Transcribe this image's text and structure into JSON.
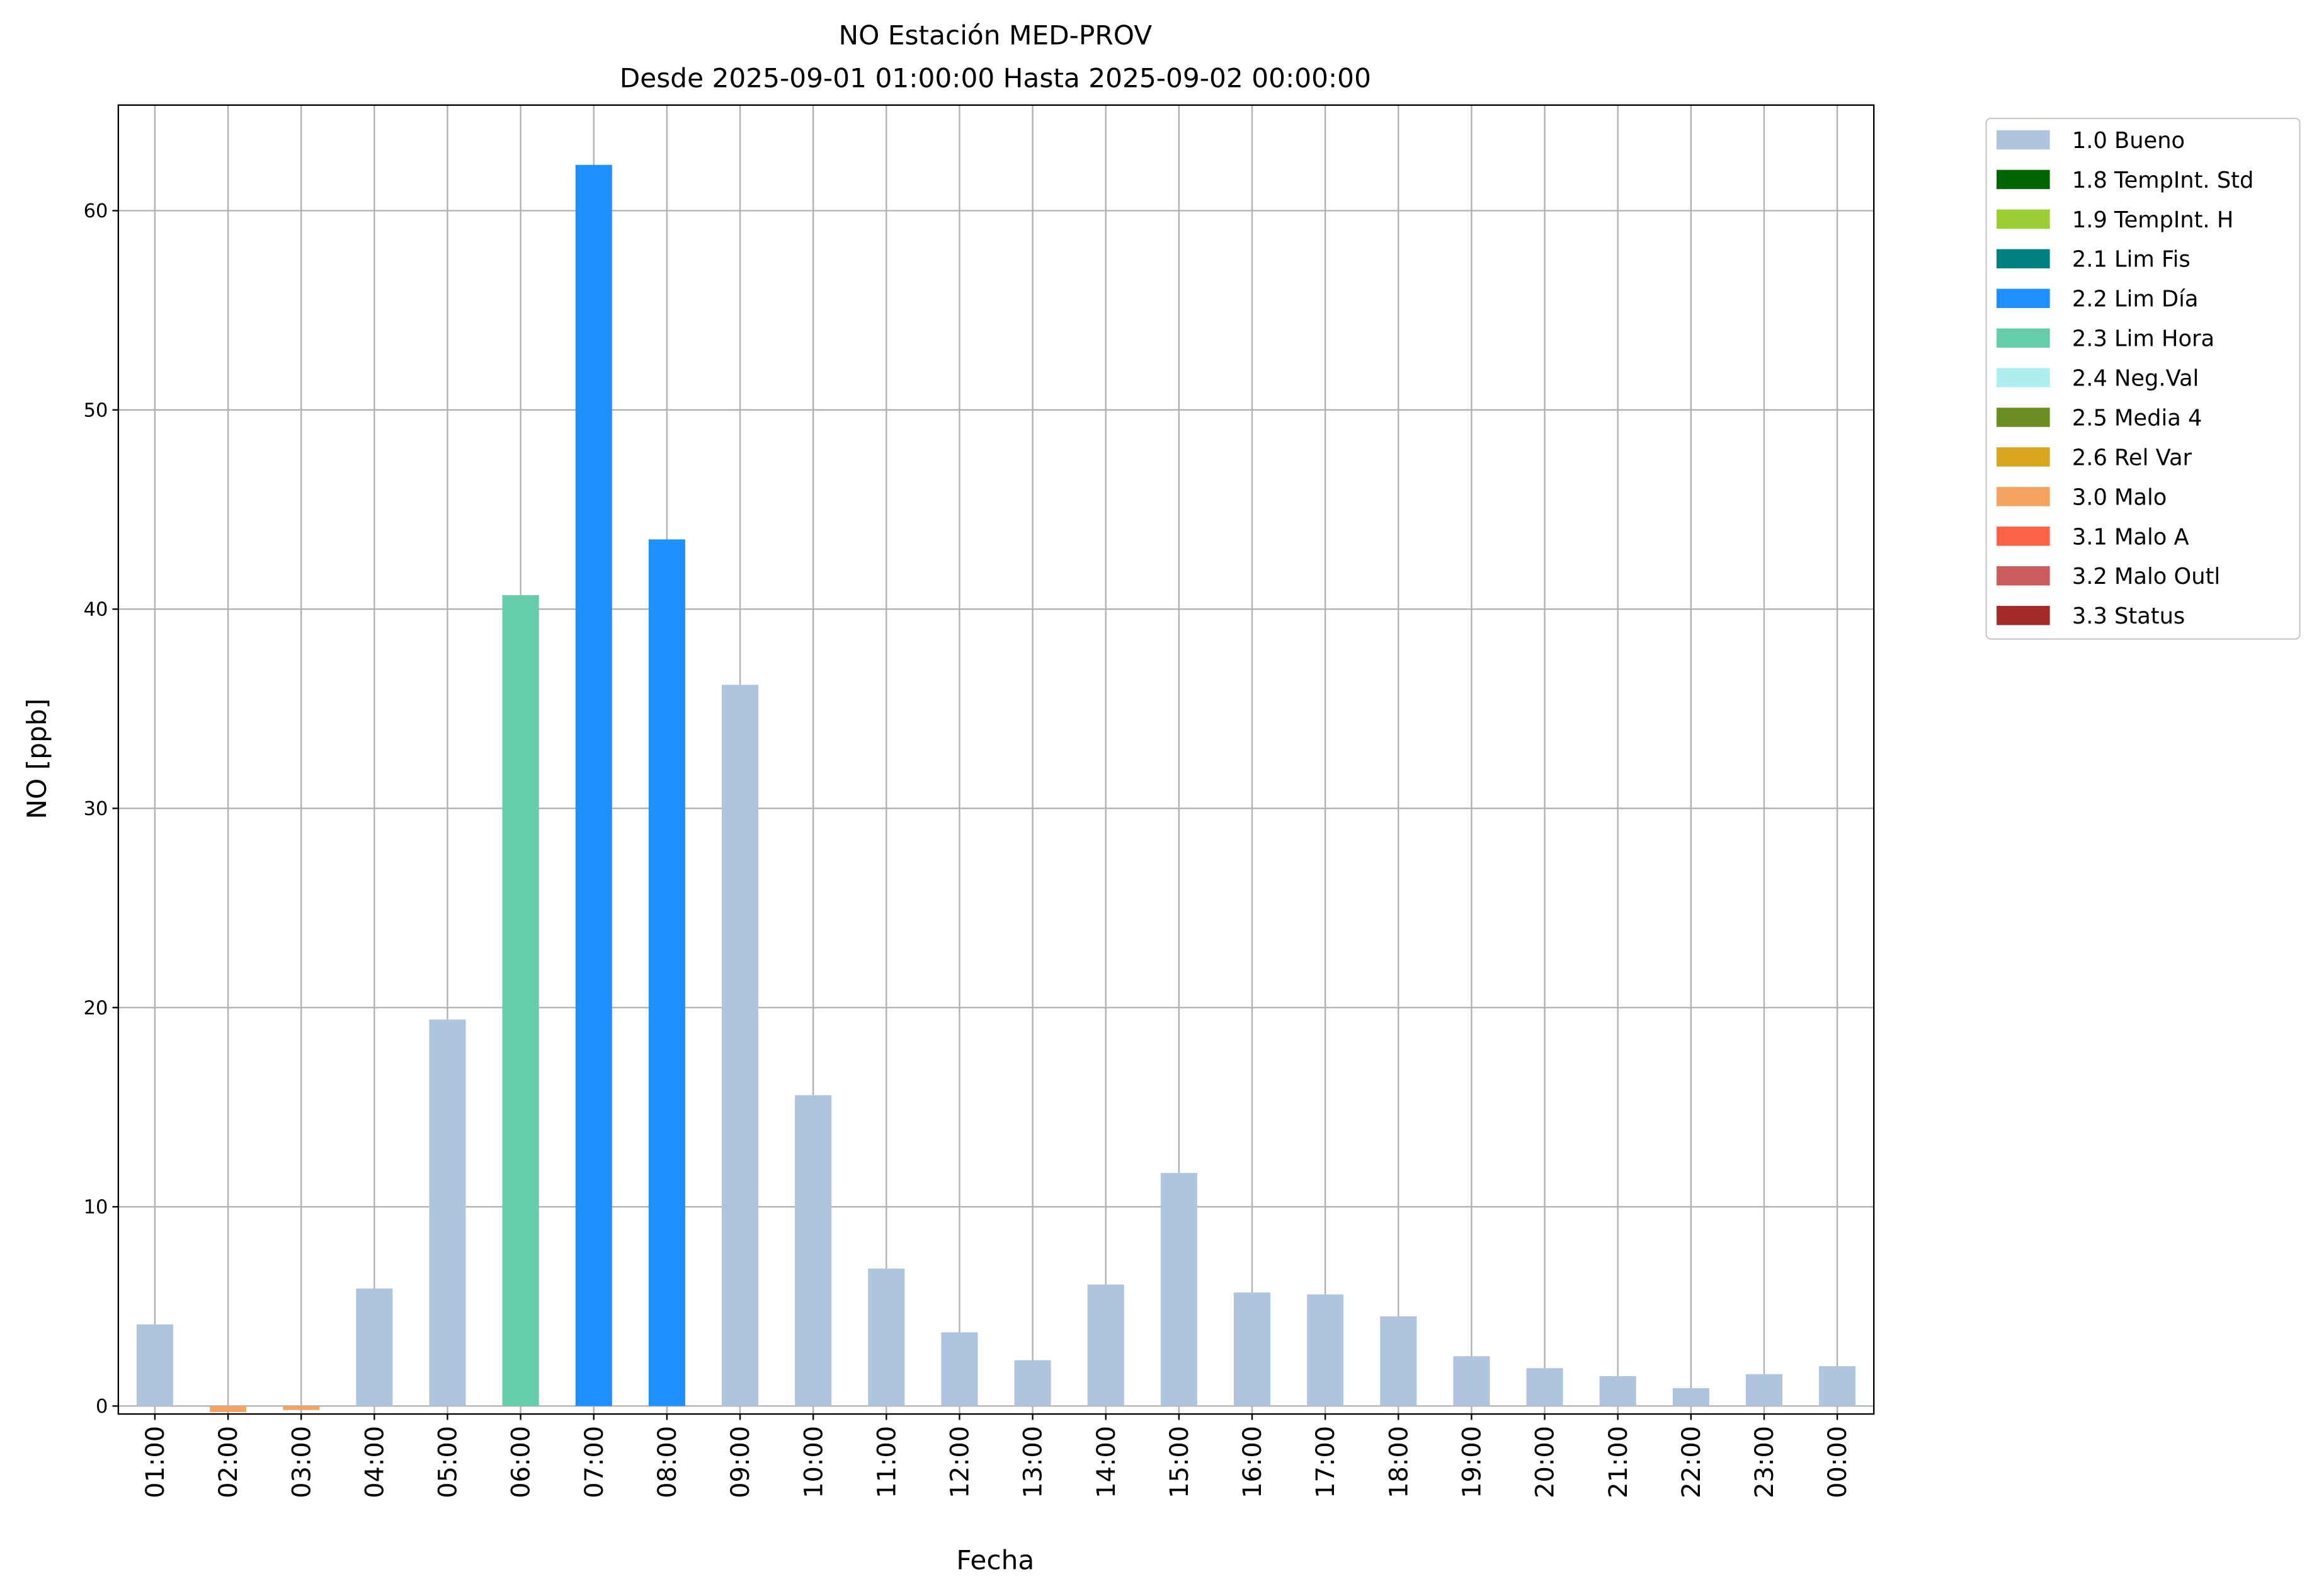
{
  "chart_data": {
    "type": "bar",
    "stacked": true,
    "title": "NO Estación MED-PROV",
    "subtitle": "Desde 2025-09-01 01:00:00 Hasta 2025-09-02 00:00:00",
    "x_label": "Fecha",
    "y_label": "NO [ppb]",
    "categories": [
      "01:00",
      "02:00",
      "03:00",
      "04:00",
      "05:00",
      "06:00",
      "07:00",
      "08:00",
      "09:00",
      "10:00",
      "11:00",
      "12:00",
      "13:00",
      "14:00",
      "15:00",
      "16:00",
      "17:00",
      "18:00",
      "19:00",
      "20:00",
      "21:00",
      "22:00",
      "23:00",
      "00:00"
    ],
    "series": [
      {
        "name": "1.0 Bueno",
        "color": "#b0c4de",
        "values": [
          4.1,
          null,
          null,
          5.9,
          19.4,
          null,
          null,
          null,
          36.2,
          15.6,
          6.9,
          3.7,
          2.3,
          6.1,
          11.7,
          5.7,
          5.6,
          4.5,
          2.5,
          1.9,
          1.5,
          0.9,
          1.6,
          2.0
        ]
      },
      {
        "name": "1.8 TempInt. Std",
        "color": "#006400",
        "values": [
          null,
          null,
          null,
          null,
          null,
          null,
          null,
          null,
          null,
          null,
          null,
          null,
          null,
          null,
          null,
          null,
          null,
          null,
          null,
          null,
          null,
          null,
          null,
          null
        ]
      },
      {
        "name": "1.9 TempInt. H",
        "color": "#9acd32",
        "values": [
          null,
          null,
          null,
          null,
          null,
          null,
          null,
          null,
          null,
          null,
          null,
          null,
          null,
          null,
          null,
          null,
          null,
          null,
          null,
          null,
          null,
          null,
          null,
          null
        ]
      },
      {
        "name": "2.1 Lim Fis",
        "color": "#008080",
        "values": [
          null,
          null,
          null,
          null,
          null,
          null,
          null,
          null,
          null,
          null,
          null,
          null,
          null,
          null,
          null,
          null,
          null,
          null,
          null,
          null,
          null,
          null,
          null,
          null
        ]
      },
      {
        "name": "2.2 Lim Día",
        "color": "#1e90ff",
        "values": [
          null,
          null,
          null,
          null,
          null,
          null,
          62.3,
          43.5,
          null,
          null,
          null,
          null,
          null,
          null,
          null,
          null,
          null,
          null,
          null,
          null,
          null,
          null,
          null,
          null
        ]
      },
      {
        "name": "2.3 Lim Hora",
        "color": "#66cdaa",
        "values": [
          null,
          null,
          null,
          null,
          null,
          40.7,
          null,
          null,
          null,
          null,
          null,
          null,
          null,
          null,
          null,
          null,
          null,
          null,
          null,
          null,
          null,
          null,
          null,
          null
        ]
      },
      {
        "name": "2.4 Neg.Val",
        "color": "#afeeee",
        "values": [
          null,
          null,
          null,
          null,
          null,
          null,
          null,
          null,
          null,
          null,
          null,
          null,
          null,
          null,
          null,
          null,
          null,
          null,
          null,
          null,
          null,
          null,
          null,
          null
        ]
      },
      {
        "name": "2.5 Media 4",
        "color": "#6b8e23",
        "values": [
          null,
          null,
          null,
          null,
          null,
          null,
          null,
          null,
          null,
          null,
          null,
          null,
          null,
          null,
          null,
          null,
          null,
          null,
          null,
          null,
          null,
          null,
          null,
          null
        ]
      },
      {
        "name": "2.6 Rel Var",
        "color": "#daa520",
        "values": [
          null,
          null,
          null,
          null,
          null,
          null,
          null,
          null,
          null,
          null,
          null,
          null,
          null,
          null,
          null,
          null,
          null,
          null,
          null,
          null,
          null,
          null,
          null,
          null
        ]
      },
      {
        "name": "3.0 Malo",
        "color": "#f4a460",
        "values": [
          null,
          -0.3,
          -0.2,
          null,
          null,
          null,
          null,
          null,
          null,
          null,
          null,
          null,
          null,
          null,
          null,
          null,
          null,
          null,
          null,
          null,
          null,
          null,
          null,
          null
        ]
      },
      {
        "name": "3.1 Malo A",
        "color": "#ff6347",
        "values": [
          null,
          null,
          null,
          null,
          null,
          null,
          null,
          null,
          null,
          null,
          null,
          null,
          null,
          null,
          null,
          null,
          null,
          null,
          null,
          null,
          null,
          null,
          null,
          null
        ]
      },
      {
        "name": "3.2 Malo Outl",
        "color": "#cd5c5c",
        "values": [
          null,
          null,
          null,
          null,
          null,
          null,
          null,
          null,
          null,
          null,
          null,
          null,
          null,
          null,
          null,
          null,
          null,
          null,
          null,
          null,
          null,
          null,
          null,
          null
        ]
      },
      {
        "name": "3.3 Status",
        "color": "#a52a2a",
        "values": [
          null,
          null,
          null,
          null,
          null,
          null,
          null,
          null,
          null,
          null,
          null,
          null,
          null,
          null,
          null,
          null,
          null,
          null,
          null,
          null,
          null,
          null,
          null,
          null
        ]
      }
    ],
    "ylim": [
      -0.4,
      65.3
    ],
    "yticks": [
      0,
      10,
      20,
      30,
      40,
      50,
      60
    ],
    "grid": true,
    "legend": "outside-right"
  }
}
